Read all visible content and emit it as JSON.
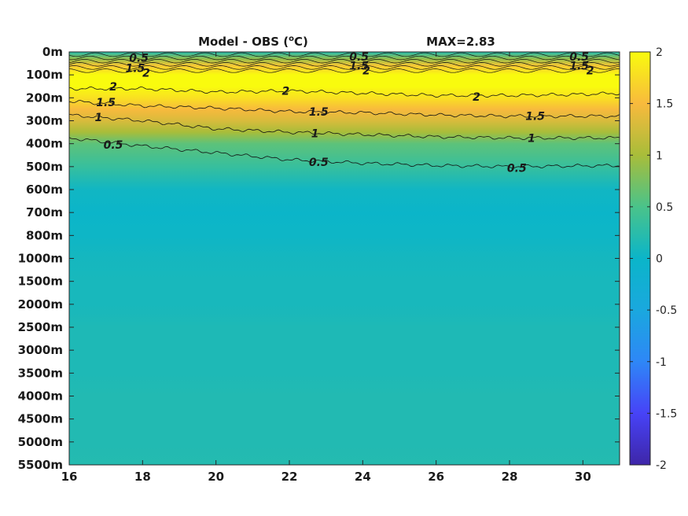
{
  "chart_data": {
    "type": "heatmap",
    "title": "Model - OBS (",
    "title_unit": "o",
    "title_tail": "C)",
    "max_label": "MAX=2.83",
    "x_ticks": [
      "16",
      "18",
      "20",
      "22",
      "24",
      "26",
      "28",
      "30"
    ],
    "x_tick_values": [
      16,
      18,
      20,
      22,
      24,
      26,
      28,
      30
    ],
    "xlim": [
      16,
      31
    ],
    "y_ticks": [
      "0m",
      "100m",
      "200m",
      "300m",
      "400m",
      "500m",
      "600m",
      "700m",
      "800m",
      "1000m",
      "1500m",
      "2000m",
      "2500m",
      "3000m",
      "3500m",
      "4000m",
      "4500m",
      "5000m",
      "5500m"
    ],
    "colorbar": {
      "ticks": [
        "2",
        "1.5",
        "1",
        "0.5",
        "0",
        "-0.5",
        "-1",
        "-1.5",
        "-2"
      ],
      "tick_values": [
        2,
        1.5,
        1,
        0.5,
        0,
        -0.5,
        -1,
        -1.5,
        -2
      ],
      "clim": [
        -2,
        2
      ]
    },
    "depth_profile": {
      "depth_index": [
        0,
        0.3,
        0.6,
        1,
        1.5,
        2,
        2.5,
        3,
        3.5,
        4,
        5,
        6,
        7,
        8,
        9,
        10,
        11,
        12,
        13,
        14,
        15,
        16,
        17,
        18
      ],
      "values": [
        0.2,
        0.9,
        1.6,
        2.0,
        2.0,
        1.8,
        1.5,
        1.3,
        1.0,
        0.6,
        0.35,
        0.05,
        0.0,
        0.02,
        0.08,
        0.1,
        0.1,
        0.15,
        0.15,
        0.15,
        0.18,
        0.18,
        0.18,
        0.2
      ]
    },
    "contour_labels": [
      {
        "text": "0.5",
        "x": 17.9,
        "d": 0.25
      },
      {
        "text": "1.5",
        "x": 17.8,
        "d": 0.7
      },
      {
        "text": "2",
        "x": 18.1,
        "d": 0.9
      },
      {
        "text": "0.5",
        "x": 23.9,
        "d": 0.2
      },
      {
        "text": "1.5",
        "x": 23.9,
        "d": 0.6
      },
      {
        "text": "2",
        "x": 24.1,
        "d": 0.8
      },
      {
        "text": "0.5",
        "x": 29.9,
        "d": 0.2
      },
      {
        "text": "1.5",
        "x": 29.9,
        "d": 0.6
      },
      {
        "text": "2",
        "x": 30.2,
        "d": 0.8
      },
      {
        "text": "2",
        "x": 17.2,
        "d": 1.5
      },
      {
        "text": "1.5",
        "x": 17.0,
        "d": 2.2
      },
      {
        "text": "1",
        "x": 16.8,
        "d": 2.85
      },
      {
        "text": "2",
        "x": 21.9,
        "d": 1.7
      },
      {
        "text": "1.5",
        "x": 22.8,
        "d": 2.6
      },
      {
        "text": "1",
        "x": 22.7,
        "d": 3.55
      },
      {
        "text": "0.5",
        "x": 17.2,
        "d": 4.05
      },
      {
        "text": "0.5",
        "x": 22.8,
        "d": 4.8
      },
      {
        "text": "2",
        "x": 27.1,
        "d": 1.95
      },
      {
        "text": "1.5",
        "x": 28.7,
        "d": 2.8
      },
      {
        "text": "1",
        "x": 28.6,
        "d": 3.75
      },
      {
        "text": "0.5",
        "x": 28.2,
        "d": 5.05
      }
    ],
    "contour_lines": [
      {
        "level": 2,
        "pts": [
          [
            16,
            1.6
          ],
          [
            18,
            1.6
          ],
          [
            20,
            1.75
          ],
          [
            22,
            1.7
          ],
          [
            24,
            1.8
          ],
          [
            26,
            1.9
          ],
          [
            28,
            1.9
          ],
          [
            30,
            1.85
          ],
          [
            31,
            1.8
          ]
        ]
      },
      {
        "level": 1.5,
        "pts": [
          [
            16,
            2.15
          ],
          [
            18,
            2.35
          ],
          [
            20,
            2.45
          ],
          [
            22,
            2.6
          ],
          [
            24,
            2.65
          ],
          [
            26,
            2.75
          ],
          [
            28,
            2.8
          ],
          [
            31,
            2.8
          ]
        ]
      },
      {
        "level": 1,
        "pts": [
          [
            16,
            2.75
          ],
          [
            18,
            3.0
          ],
          [
            20,
            3.35
          ],
          [
            22,
            3.5
          ],
          [
            24,
            3.6
          ],
          [
            26,
            3.7
          ],
          [
            28,
            3.75
          ],
          [
            31,
            3.75
          ]
        ]
      },
      {
        "level": 0.5,
        "pts": [
          [
            16,
            3.75
          ],
          [
            18,
            4.1
          ],
          [
            20,
            4.4
          ],
          [
            22,
            4.7
          ],
          [
            24,
            4.85
          ],
          [
            26,
            4.95
          ],
          [
            28,
            5.0
          ],
          [
            31,
            4.95
          ]
        ]
      }
    ]
  }
}
